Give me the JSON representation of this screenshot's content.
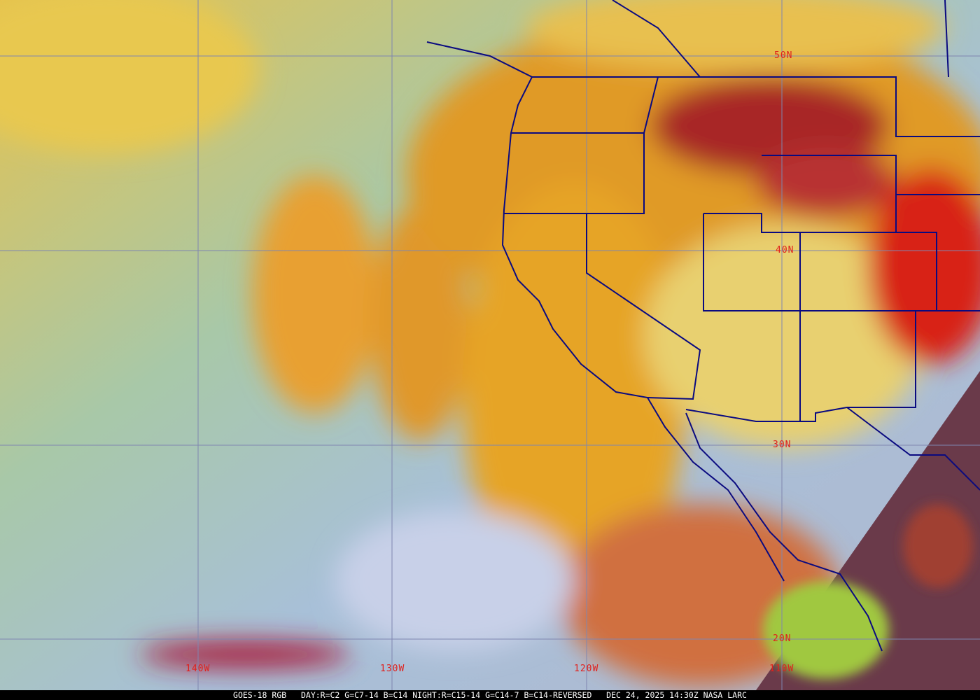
{
  "map": {
    "lat_labels": [
      "50N",
      "40N",
      "30N",
      "20N"
    ],
    "lon_labels": [
      "140W",
      "130W",
      "120W",
      "110W"
    ],
    "colors": {
      "grid": "#7f86b0",
      "borders": "#0a0a80",
      "labels": "#e0201c",
      "cloud_orange": "#e8a020",
      "ocean_cyan": "#9cc6c8",
      "storm_red": "#c02020"
    }
  },
  "caption": {
    "product": "GOES-18 RGB",
    "recipe": "DAY:R=C2 G=C7-14 B=C14 NIGHT:R=C15-14 G=C14-7 B=C14-REVERSED",
    "timestamp": "DEC 24, 2025 14:30Z NASA LARC"
  }
}
